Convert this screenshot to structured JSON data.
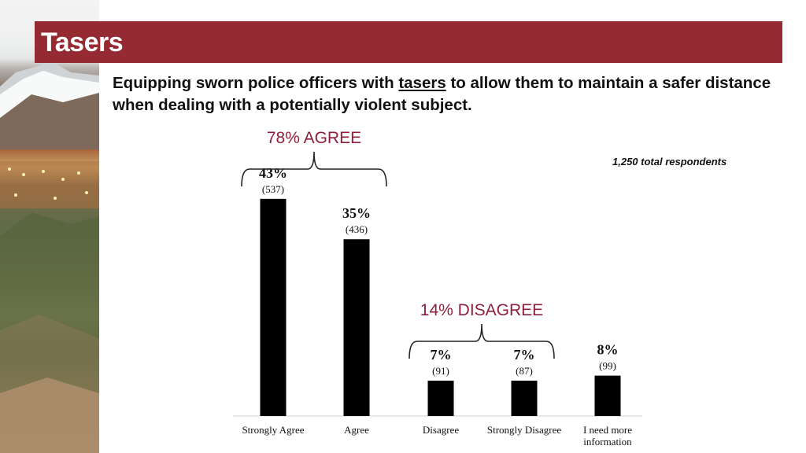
{
  "slide": {
    "title": "Tasers",
    "question_before": "Equipping sworn police officers with ",
    "question_emphasis": "tasers",
    "question_after": " to allow them to maintain a safer distance when dealing with a potentially violent subject.",
    "respondents": "1,250 total respondents"
  },
  "chart_data": {
    "type": "bar",
    "title": "",
    "xlabel": "",
    "ylabel": "",
    "ylim": [
      0,
      45
    ],
    "grid": false,
    "categories": [
      "Strongly Agree",
      "Agree",
      "Disagree",
      "Strongly Disagree",
      "I need more information"
    ],
    "category_lines": [
      [
        "Strongly Agree"
      ],
      [
        "Agree"
      ],
      [
        "Disagree"
      ],
      [
        "Strongly Disagree"
      ],
      [
        "I need more",
        "information"
      ]
    ],
    "values": [
      43,
      35,
      7,
      7,
      8
    ],
    "value_labels": [
      "43%",
      "35%",
      "7%",
      "7%",
      "8%"
    ],
    "counts": [
      "(537)",
      "(436)",
      "(91)",
      "(87)",
      "(99)"
    ],
    "groups": [
      {
        "label": "78% AGREE",
        "from": 0,
        "to": 1
      },
      {
        "label": "14% DISAGREE",
        "from": 2,
        "to": 3
      }
    ],
    "bar_color": "#000000",
    "group_label_color": "#8e1f3c"
  }
}
